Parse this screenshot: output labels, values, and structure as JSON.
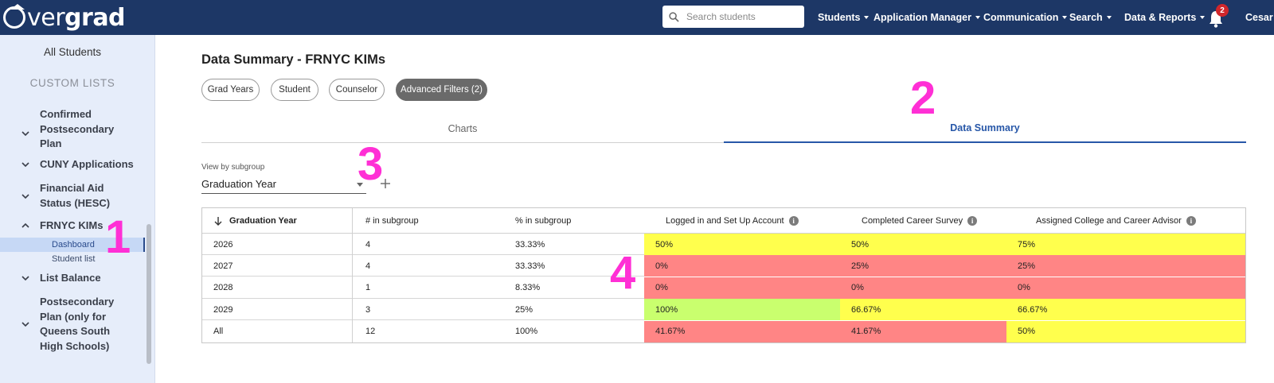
{
  "brand": {
    "name_light": "vergrad",
    "name_prefix": "O",
    "name_bold": "grad"
  },
  "search": {
    "placeholder": "Search students"
  },
  "nav": {
    "items": [
      "Students",
      "Application Manager",
      "Communication",
      "Search",
      "Data & Reports"
    ],
    "notifications_count": "2",
    "user": "Cesar"
  },
  "sidebar": {
    "all_students": "All Students",
    "custom_lists_heading": "CUSTOM LISTS",
    "lists": [
      {
        "label": "Confirmed Postsecondary Plan"
      },
      {
        "label": "CUNY Applications"
      },
      {
        "label": "Financial Aid Status (HESC)"
      },
      {
        "label": "FRNYC KIMs"
      },
      {
        "label": "List Balance"
      },
      {
        "label": "Postsecondary Plan (only for Queens South High Schools)"
      }
    ],
    "sub_items": [
      "Dashboard",
      "Student list"
    ]
  },
  "main": {
    "title": "Data Summary - FRNYC KIMs",
    "chips": [
      "Grad Years",
      "Student",
      "Counselor",
      "Advanced Filters (2)"
    ],
    "tabs": [
      "Charts",
      "Data Summary"
    ],
    "subgroup_label": "View by subgroup",
    "subgroup_value": "Graduation Year"
  },
  "table": {
    "headers": [
      "Graduation Year",
      "# in subgroup",
      "% in subgroup",
      "Logged in and Set Up Account",
      "Completed Career Survey",
      "Assigned College and Career Advisor"
    ],
    "rows": [
      [
        "2026",
        "4",
        "33.33%",
        "50%",
        "50%",
        "75%"
      ],
      [
        "2027",
        "4",
        "33.33%",
        "0%",
        "25%",
        "25%"
      ],
      [
        "2028",
        "1",
        "8.33%",
        "0%",
        "0%",
        "0%"
      ],
      [
        "2029",
        "3",
        "25%",
        "100%",
        "66.67%",
        "66.67%"
      ],
      [
        "All",
        "12",
        "100%",
        "41.67%",
        "41.67%",
        "50%"
      ]
    ],
    "cell_colors": [
      [
        "#ffff4d",
        "#ffff4d",
        "#ffff4d"
      ],
      [
        "#ff8585",
        "#ff8585",
        "#ff8585"
      ],
      [
        "#ff8585",
        "#ff8585",
        "#ff8585"
      ],
      [
        "#c9ff6e",
        "#ffff4d",
        "#ffff4d"
      ],
      [
        "#ff8585",
        "#ff8585",
        "#ffff4d"
      ]
    ]
  },
  "annotations": [
    "1",
    "2",
    "3",
    "4"
  ],
  "colors": {
    "topbar": "#1d3766",
    "accent": "#2757a8",
    "annotation": "#ff2fd5"
  }
}
